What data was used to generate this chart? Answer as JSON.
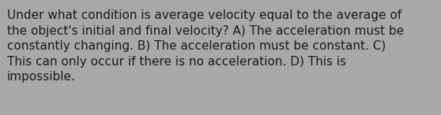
{
  "text": "Under what condition is average velocity equal to the average of\nthe object's initial and final velocity? A) The acceleration must be\nconstantly changing. B) The acceleration must be constant. C)\nThis can only occur if there is no acceleration. D) This is\nimpossible.",
  "background_color": "#a8a8a8",
  "text_color": "#1a1a1a",
  "font_size": 11.0,
  "fig_width": 5.58,
  "fig_height": 1.46,
  "dpi": 100
}
